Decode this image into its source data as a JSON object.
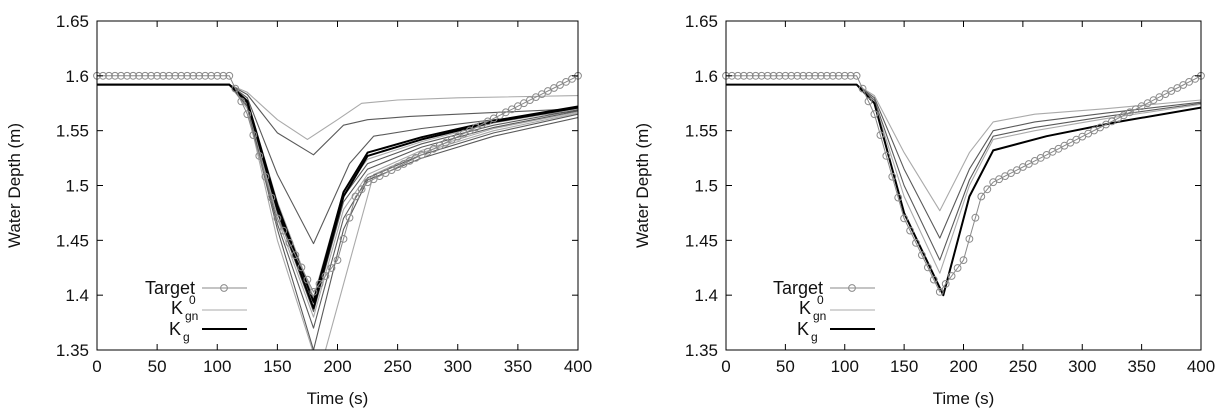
{
  "chart_data": [
    {
      "type": "line",
      "panel": "left",
      "xlabel": "Time (s)",
      "ylabel": "Water Depth (m)",
      "xlim": [
        0,
        400
      ],
      "ylim": [
        1.35,
        1.65
      ],
      "xticks": [
        0,
        50,
        100,
        150,
        200,
        250,
        300,
        350,
        400
      ],
      "yticks": [
        1.35,
        1.4,
        1.45,
        1.5,
        1.55,
        1.6,
        1.65
      ],
      "grid": false,
      "legend_position": "bottom-left",
      "legend": [
        {
          "label": "Target",
          "style": "gray line with circle markers"
        },
        {
          "label": "K",
          "superscript": "0",
          "subscript": "gn",
          "style": "light gray line"
        },
        {
          "label": "K",
          "subscript": "g",
          "style": "black line"
        }
      ],
      "target": {
        "x_start": 0,
        "x_step": 5,
        "x_end": 400,
        "points": [
          [
            0,
            1.6
          ],
          [
            110,
            1.6
          ],
          [
            125,
            1.565
          ],
          [
            150,
            1.47
          ],
          [
            180,
            1.403
          ],
          [
            200,
            1.432
          ],
          [
            215,
            1.49
          ],
          [
            225,
            1.503
          ],
          [
            400,
            1.6
          ]
        ]
      },
      "K0_gn_curves": [
        {
          "x": [
            0,
            110,
            125,
            150,
            175,
            200,
            220,
            250,
            300,
            400
          ],
          "y": [
            1.592,
            1.592,
            1.585,
            1.56,
            1.542,
            1.56,
            1.575,
            1.578,
            1.58,
            1.582
          ]
        },
        {
          "x": [
            0,
            110,
            125,
            150,
            180,
            205,
            225,
            260,
            320,
            400
          ],
          "y": [
            1.592,
            1.592,
            1.583,
            1.548,
            1.528,
            1.555,
            1.56,
            1.563,
            1.566,
            1.57
          ]
        },
        {
          "x": [
            0,
            110,
            125,
            150,
            180,
            210,
            230,
            270,
            330,
            400
          ],
          "y": [
            1.592,
            1.592,
            1.58,
            1.51,
            1.447,
            1.52,
            1.545,
            1.552,
            1.56,
            1.568
          ]
        },
        {
          "x": [
            0,
            110,
            125,
            150,
            185,
            210,
            230,
            270,
            330,
            400
          ],
          "y": [
            1.592,
            1.592,
            1.57,
            1.45,
            1.33,
            1.43,
            1.51,
            1.53,
            1.55,
            1.566
          ]
        },
        {
          "x": [
            0,
            110,
            125,
            150,
            180,
            205,
            225,
            270,
            330,
            400
          ],
          "y": [
            1.592,
            1.592,
            1.572,
            1.46,
            1.35,
            1.46,
            1.505,
            1.525,
            1.545,
            1.562
          ]
        },
        {
          "x": [
            0,
            110,
            125,
            150,
            180,
            205,
            225,
            270,
            330,
            400
          ],
          "y": [
            1.592,
            1.592,
            1.573,
            1.465,
            1.37,
            1.47,
            1.507,
            1.528,
            1.548,
            1.565
          ]
        },
        {
          "x": [
            0,
            110,
            125,
            150,
            180,
            205,
            225,
            270,
            330,
            400
          ],
          "y": [
            1.592,
            1.592,
            1.574,
            1.47,
            1.38,
            1.478,
            1.51,
            1.532,
            1.552,
            1.567
          ]
        },
        {
          "x": [
            0,
            110,
            125,
            150,
            180,
            205,
            225,
            270,
            330,
            400
          ],
          "y": [
            1.592,
            1.592,
            1.575,
            1.475,
            1.385,
            1.485,
            1.515,
            1.535,
            1.553,
            1.568
          ]
        },
        {
          "x": [
            0,
            110,
            125,
            150,
            180,
            205,
            225,
            270,
            330,
            400
          ],
          "y": [
            1.592,
            1.592,
            1.577,
            1.48,
            1.393,
            1.49,
            1.52,
            1.538,
            1.555,
            1.569
          ]
        },
        {
          "x": [
            0,
            110,
            125,
            150,
            180,
            205,
            225,
            270,
            330,
            400
          ],
          "y": [
            1.592,
            1.592,
            1.578,
            1.485,
            1.398,
            1.495,
            1.524,
            1.54,
            1.557,
            1.57
          ]
        }
      ],
      "Kg_curves": [
        {
          "x": [
            0,
            110,
            125,
            150,
            180,
            205,
            225,
            270,
            330,
            400
          ],
          "y": [
            1.592,
            1.592,
            1.576,
            1.478,
            1.388,
            1.49,
            1.527,
            1.542,
            1.558,
            1.571
          ]
        },
        {
          "x": [
            0,
            110,
            125,
            150,
            180,
            205,
            225,
            270,
            330,
            400
          ],
          "y": [
            1.592,
            1.592,
            1.577,
            1.482,
            1.394,
            1.494,
            1.53,
            1.544,
            1.559,
            1.572
          ]
        }
      ]
    },
    {
      "type": "line",
      "panel": "right",
      "xlabel": "Time (s)",
      "ylabel": "Water Depth (m)",
      "xlim": [
        0,
        400
      ],
      "ylim": [
        1.35,
        1.65
      ],
      "xticks": [
        0,
        50,
        100,
        150,
        200,
        250,
        300,
        350,
        400
      ],
      "yticks": [
        1.35,
        1.4,
        1.45,
        1.5,
        1.55,
        1.6,
        1.65
      ],
      "grid": false,
      "legend_position": "bottom-left",
      "legend": [
        {
          "label": "Target",
          "style": "gray line with circle markers"
        },
        {
          "label": "K",
          "superscript": "0",
          "subscript": "gn",
          "style": "light gray line"
        },
        {
          "label": "K",
          "subscript": "g",
          "style": "black line"
        }
      ],
      "target": {
        "x_start": 0,
        "x_step": 5,
        "x_end": 400,
        "points": [
          [
            0,
            1.6
          ],
          [
            110,
            1.6
          ],
          [
            125,
            1.565
          ],
          [
            150,
            1.47
          ],
          [
            180,
            1.403
          ],
          [
            200,
            1.432
          ],
          [
            215,
            1.49
          ],
          [
            225,
            1.503
          ],
          [
            400,
            1.6
          ]
        ]
      },
      "K0_gn_curves": [
        {
          "x": [
            0,
            110,
            125,
            150,
            180,
            205,
            225,
            260,
            320,
            400
          ],
          "y": [
            1.592,
            1.592,
            1.582,
            1.53,
            1.477,
            1.53,
            1.558,
            1.565,
            1.57,
            1.578
          ]
        },
        {
          "x": [
            0,
            110,
            125,
            150,
            180,
            205,
            225,
            260,
            320,
            400
          ],
          "y": [
            1.592,
            1.592,
            1.58,
            1.515,
            1.452,
            1.515,
            1.55,
            1.558,
            1.566,
            1.576
          ]
        },
        {
          "x": [
            0,
            110,
            125,
            150,
            180,
            205,
            225,
            260,
            320,
            400
          ],
          "y": [
            1.592,
            1.592,
            1.578,
            1.5,
            1.432,
            1.505,
            1.545,
            1.553,
            1.563,
            1.575
          ]
        },
        {
          "x": [
            0,
            110,
            125,
            150,
            180,
            205,
            225,
            260,
            320,
            400
          ],
          "y": [
            1.592,
            1.592,
            1.576,
            1.49,
            1.42,
            1.5,
            1.542,
            1.55,
            1.561,
            1.574
          ]
        }
      ],
      "Kg_curves": [
        {
          "x": [
            0,
            110,
            125,
            150,
            183,
            205,
            225,
            270,
            330,
            400
          ],
          "y": [
            1.592,
            1.592,
            1.575,
            1.475,
            1.4,
            1.49,
            1.532,
            1.545,
            1.558,
            1.571
          ]
        }
      ]
    }
  ]
}
